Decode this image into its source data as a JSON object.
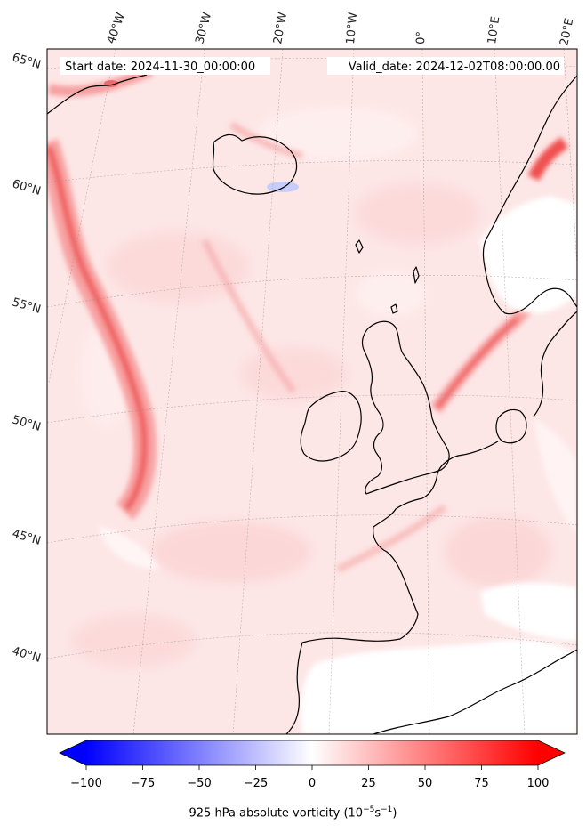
{
  "header": {
    "start_date": "Start date: 2024-11-30_00:00:00",
    "valid_date": "Valid_date: 2024-12-02T08:00:00.00"
  },
  "map": {
    "projection": "lambert-conic",
    "lon_labels": [
      "40°W",
      "30°W",
      "20°W",
      "10°W",
      "0°",
      "10°E",
      "20°E"
    ],
    "lat_labels": [
      "65°N",
      "60°N",
      "55°N",
      "50°N",
      "45°N",
      "40°N"
    ],
    "field": "925 hPa absolute vorticity",
    "colormap": "bwr",
    "background_value": 10,
    "regions": [
      "Greenland",
      "Iceland",
      "Norway",
      "Ireland",
      "Great Britain",
      "France",
      "Iberian Peninsula"
    ]
  },
  "colorbar": {
    "min": -100,
    "max": 100,
    "tick_labels": [
      "−100",
      "−75",
      "−50",
      "−25",
      "0",
      "25",
      "50",
      "75",
      "100"
    ],
    "label_prefix": "925 hPa absolute vorticity (10",
    "label_exp1": "−5",
    "label_mid": "s",
    "label_exp2": "−1",
    "label_suffix": ")",
    "extend": "both",
    "colors": {
      "low": "#0000ff",
      "mid": "#ffffff",
      "high": "#ff0000"
    }
  }
}
